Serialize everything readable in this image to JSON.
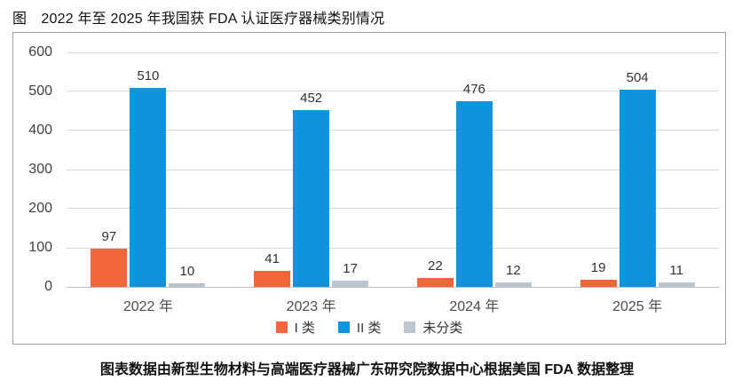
{
  "page": {
    "title": "图　2022 年至 2025 年我国获 FDA 认证医疗器械类别情况",
    "footer": "图表数据由新型生物材料与高端医疗器械广东研究院数据中心根据美国 FDA 数据整理"
  },
  "colors": {
    "class1": "#F2663C",
    "class2": "#0E93DC",
    "unclassified": "#BAC7D3",
    "gridline": "#D9D9D9",
    "axis_line": "#BFBFBF",
    "box_border": "#A6A6A6",
    "tick_text": "#404040",
    "value_text": "#333333"
  },
  "chart_data": {
    "type": "bar",
    "title": "图　2022 年至 2025 年我国获 FDA 认证医疗器械类别情况",
    "categories": [
      "2022 年",
      "2023 年",
      "2024 年",
      "2025 年"
    ],
    "series": [
      {
        "name": "I 类",
        "color": "#F2663C",
        "values": [
          97,
          41,
          22,
          19
        ]
      },
      {
        "name": "II 类",
        "color": "#0E93DC",
        "values": [
          510,
          452,
          476,
          504
        ]
      },
      {
        "name": "未分类",
        "color": "#BAC7D3",
        "values": [
          10,
          17,
          12,
          11
        ]
      }
    ],
    "xlabel": "",
    "ylabel": "",
    "ylim": [
      0,
      600
    ],
    "ytick_step": 100,
    "grid": true,
    "legend_position": "bottom",
    "source_note": "图表数据由新型生物材料与高端医疗器械广东研究院数据中心根据美国 FDA 数据整理"
  }
}
